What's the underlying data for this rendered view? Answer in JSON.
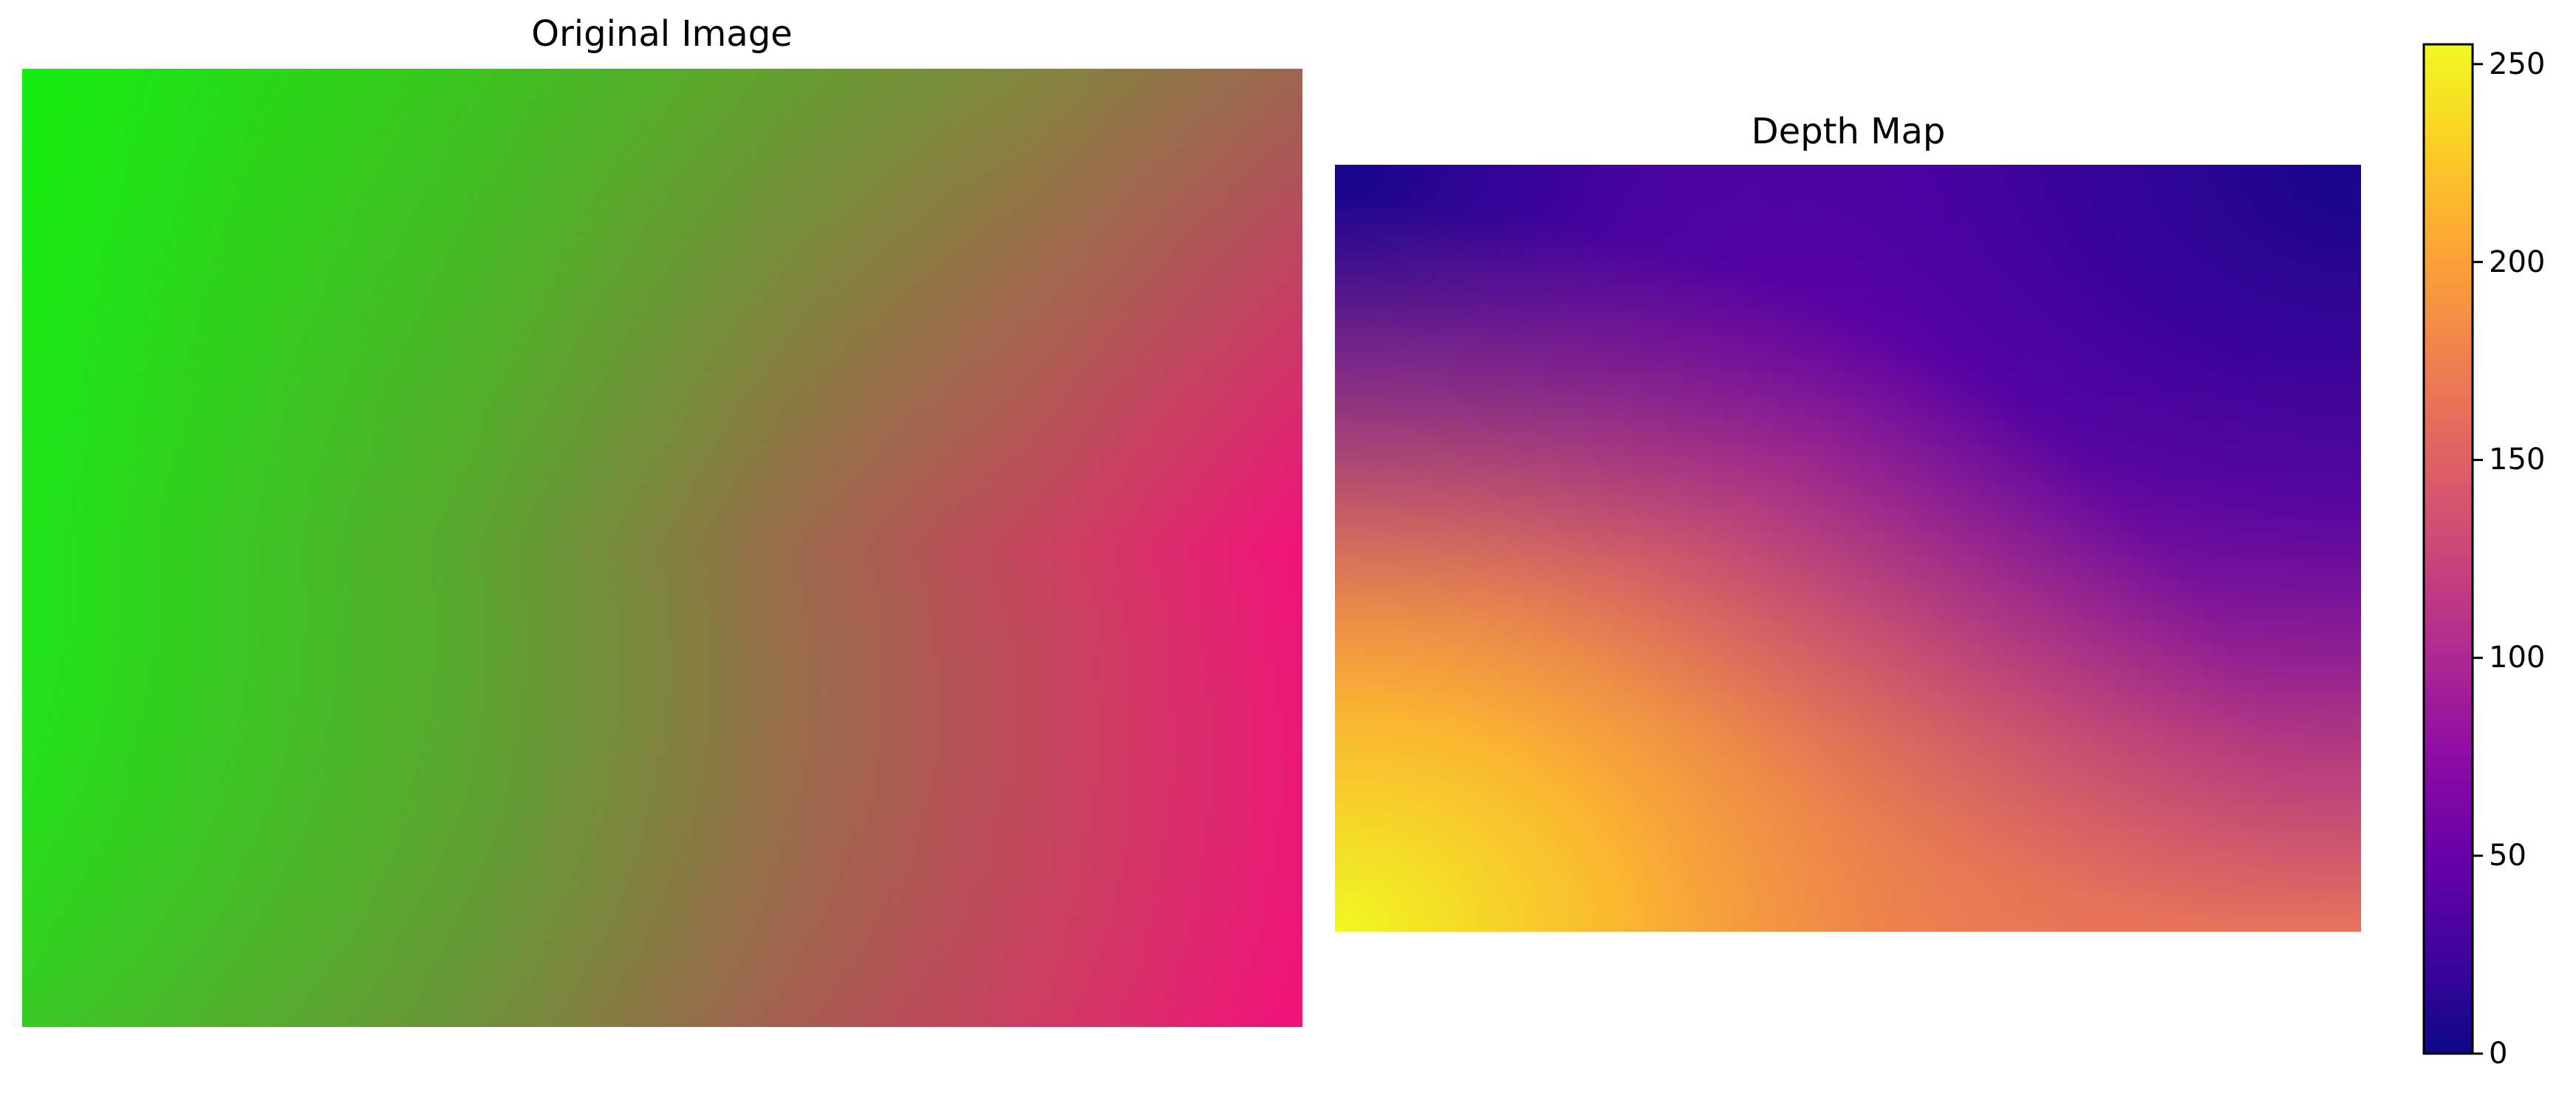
{
  "chart_data": [
    {
      "type": "heatmap",
      "title": "Original Image",
      "description_colors": {
        "top_left": "#00ff00",
        "top_right": "#b0505a",
        "bottom_left": "#4eb52c",
        "bottom_right": "#ff0080"
      }
    },
    {
      "type": "heatmap",
      "title": "Depth Map",
      "colormap": "plasma",
      "colorbar": {
        "ticks": [
          0,
          50,
          100,
          150,
          200,
          250
        ],
        "tick_labels": [
          "0",
          "50",
          "100",
          "150",
          "200",
          "250"
        ],
        "range": [
          0,
          255
        ]
      }
    }
  ]
}
